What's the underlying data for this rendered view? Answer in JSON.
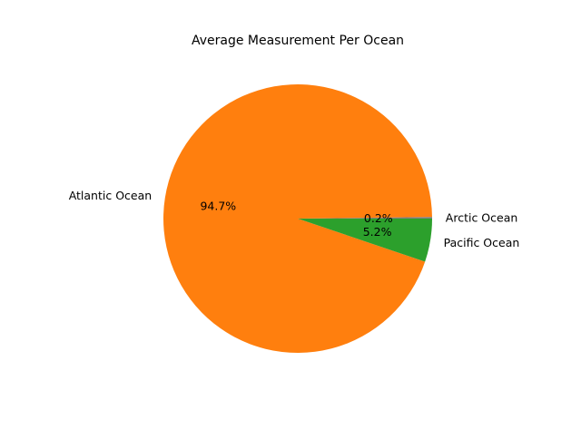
{
  "chart_data": {
    "type": "pie",
    "title": "Average Measurement Per Ocean",
    "slices": [
      {
        "label": "Arctic Ocean",
        "percent": 0.2,
        "pct_label": "0.2%",
        "color": "#7f7f7f"
      },
      {
        "label": "Atlantic Ocean",
        "percent": 94.7,
        "pct_label": "94.7%",
        "color": "#ff7f0e"
      },
      {
        "label": "Pacific Ocean",
        "percent": 5.2,
        "pct_label": "5.2%",
        "color": "#2ca02c"
      }
    ],
    "start_angle_deg": 0,
    "direction": "counterclockwise"
  }
}
